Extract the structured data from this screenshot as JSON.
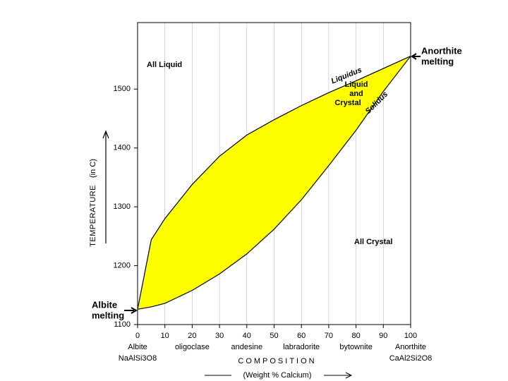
{
  "chart_data": {
    "type": "line",
    "fill_between": true,
    "fill": "#ffff00",
    "x": [
      0,
      5,
      10,
      20,
      30,
      40,
      50,
      60,
      70,
      80,
      90,
      100
    ],
    "series": [
      {
        "name": "Liquidus",
        "color": "#000000",
        "values": [
          1126,
          1244,
          1280,
          1338,
          1386,
          1422,
          1448,
          1472,
          1494,
          1514,
          1535,
          1556
        ]
      },
      {
        "name": "Solidus",
        "color": "#000000",
        "values": [
          1126,
          1130,
          1136,
          1158,
          1186,
          1220,
          1262,
          1312,
          1370,
          1430,
          1496,
          1556
        ]
      }
    ],
    "xlim": [
      0,
      100
    ],
    "ylim": [
      1100,
      1613
    ],
    "xticks": [
      0,
      10,
      20,
      30,
      40,
      50,
      60,
      70,
      80,
      90,
      100
    ],
    "yticks": [
      1100,
      1200,
      1300,
      1400,
      1500
    ],
    "grid": true,
    "x_label": "COMPOSITION",
    "x_sublabel": "(Weight % Calcium)",
    "y_label": "TEMPERATURE",
    "y_sublabel": "(in C)",
    "left_end": [
      "Albite",
      "NaAlSi3O8"
    ],
    "right_end": [
      "Anorthite",
      "CaAl2Si2O8"
    ],
    "minerals": [
      {
        "name": "oligoclase",
        "x": 20
      },
      {
        "name": "andesine",
        "x": 40
      },
      {
        "name": "labradorite",
        "x": 60
      },
      {
        "name": "bytownite",
        "x": 80
      }
    ],
    "regions": {
      "all_liquid": "All Liquid",
      "liquid_crystal": [
        "Liquid",
        "and",
        "Crystal"
      ],
      "all_crystal": "All  Crystal"
    },
    "melting": {
      "anorthite": [
        "Anorthite",
        "melting"
      ],
      "albite": [
        "Albite",
        "melting"
      ]
    }
  }
}
